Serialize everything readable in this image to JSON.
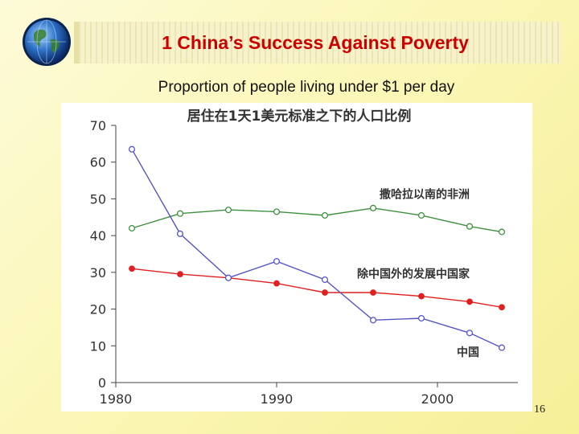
{
  "slide": {
    "title": "1 China’s Success Against Poverty",
    "subtitle": "Proportion of people living under $1 per day",
    "page_number": "16",
    "icon": "globe-icon"
  },
  "colors": {
    "title": "#cc0000",
    "china": "#5555c8",
    "africa": "#3f8f3f",
    "other": "#e02020"
  },
  "chart_data": {
    "type": "line",
    "title": "居住在1天1美元标准之下的人口比例",
    "xlabel": "",
    "ylabel": "",
    "xlim": [
      1980,
      2005
    ],
    "ylim": [
      0,
      70
    ],
    "x_ticks": [
      "1980",
      "1990",
      "2000"
    ],
    "y_ticks": [
      "0",
      "10",
      "20",
      "30",
      "40",
      "50",
      "60",
      "70"
    ],
    "series": [
      {
        "name": "撒哈拉以南的非洲",
        "color": "#3f8f3f",
        "x": [
          1981,
          1984,
          1987,
          1990,
          1993,
          1996,
          1999,
          2002,
          2004
        ],
        "values": [
          42,
          46,
          47,
          46.5,
          45.5,
          47.5,
          45.5,
          42.5,
          41
        ]
      },
      {
        "name": "除中国外的发展中国家",
        "color": "#e02020",
        "x": [
          1981,
          1984,
          1987,
          1990,
          1993,
          1996,
          1999,
          2002,
          2004
        ],
        "values": [
          31,
          29.5,
          28.5,
          27,
          24.5,
          24.5,
          23.5,
          22,
          20.5
        ]
      },
      {
        "name": "中国",
        "color": "#5555c8",
        "x": [
          1981,
          1984,
          1987,
          1990,
          1993,
          1996,
          1999,
          2002,
          2004
        ],
        "values": [
          63.5,
          40.5,
          28.5,
          33,
          28,
          17,
          17.5,
          13.5,
          9.5
        ]
      }
    ]
  }
}
